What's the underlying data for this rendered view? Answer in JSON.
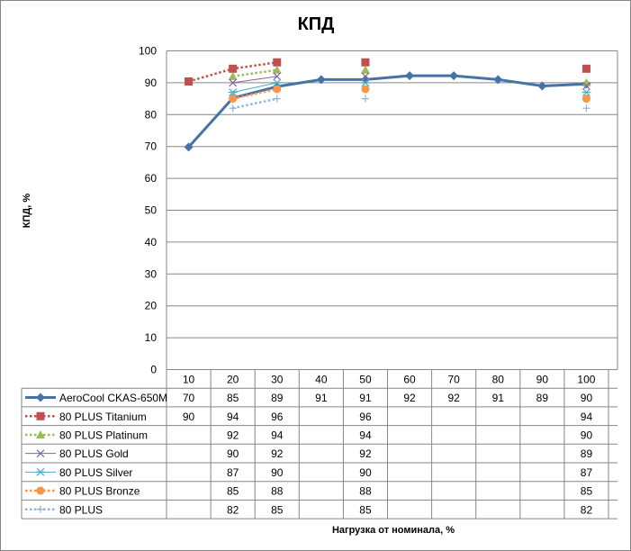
{
  "chart_data": {
    "type": "line",
    "title": "КПД",
    "ylabel": "КПД, %",
    "xlabel": "Нагрузка от номинала, %",
    "ylim": [
      0,
      100
    ],
    "yticks": [
      0,
      10,
      20,
      30,
      40,
      50,
      60,
      70,
      80,
      90,
      100
    ],
    "grid": true,
    "legend_placement": "data-table",
    "categories": [
      "10",
      "20",
      "30",
      "40",
      "50",
      "60",
      "70",
      "80",
      "90",
      "100"
    ],
    "series": [
      {
        "name": "AeroCool CKAS-650M",
        "color": "#4572a7",
        "marker": "diamond",
        "dash": "solid",
        "values": [
          70,
          85,
          89,
          91,
          91,
          92,
          92,
          91,
          89,
          90
        ],
        "plot": [
          69.8,
          85.2,
          88.8,
          91,
          91,
          92.2,
          92.2,
          91,
          89,
          89.6
        ]
      },
      {
        "name": "80 PLUS Titanium",
        "color": "#c0504d",
        "marker": "square",
        "dash": "dot",
        "values": [
          90,
          94,
          96,
          null,
          96,
          null,
          null,
          null,
          null,
          94
        ],
        "plot": [
          90.4,
          94.4,
          96.4,
          null,
          96.4,
          null,
          null,
          null,
          null,
          94.4
        ]
      },
      {
        "name": "80 PLUS Platinum",
        "color": "#9bbb59",
        "marker": "triangle",
        "dash": "dot",
        "values": [
          null,
          92,
          94,
          null,
          94,
          null,
          null,
          null,
          null,
          90
        ],
        "plot": [
          null,
          92,
          94,
          null,
          94,
          null,
          null,
          null,
          null,
          90
        ]
      },
      {
        "name": "80 PLUS Gold",
        "color": "#8064a2",
        "marker": "x",
        "dash": "solid",
        "values": [
          null,
          90,
          92,
          null,
          92,
          null,
          null,
          null,
          null,
          89
        ],
        "plot": [
          null,
          90,
          92,
          null,
          92,
          null,
          null,
          null,
          null,
          89
        ]
      },
      {
        "name": "80 PLUS Silver",
        "color": "#4bacc6",
        "marker": "star",
        "dash": "solid",
        "values": [
          null,
          87,
          90,
          null,
          90,
          null,
          null,
          null,
          null,
          87
        ],
        "plot": [
          null,
          87,
          90,
          null,
          90,
          null,
          null,
          null,
          null,
          87
        ]
      },
      {
        "name": "80 PLUS Bronze",
        "color": "#f79646",
        "marker": "circle",
        "dash": "dot",
        "values": [
          null,
          85,
          88,
          null,
          88,
          null,
          null,
          null,
          null,
          85
        ],
        "plot": [
          null,
          85,
          88,
          null,
          88,
          null,
          null,
          null,
          null,
          85
        ]
      },
      {
        "name": "80 PLUS",
        "color": "#95b3d7",
        "marker": "plus",
        "dash": "dot",
        "values": [
          null,
          82,
          85,
          null,
          85,
          null,
          null,
          null,
          null,
          82
        ],
        "plot": [
          null,
          82,
          85,
          null,
          85,
          null,
          null,
          null,
          null,
          82
        ]
      }
    ]
  }
}
